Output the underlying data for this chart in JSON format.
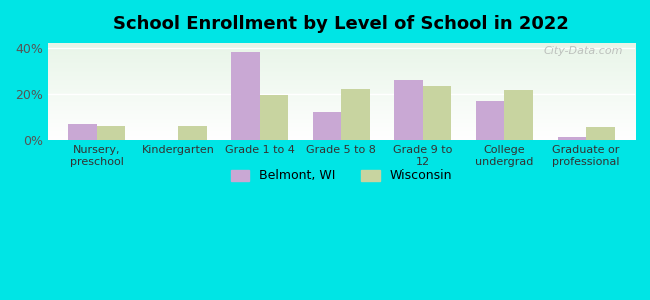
{
  "title": "School Enrollment by Level of School in 2022",
  "categories": [
    "Nursery,\npreschool",
    "Kindergarten",
    "Grade 1 to 4",
    "Grade 5 to 8",
    "Grade 9 to\n12",
    "College\nundergrad",
    "Graduate or\nprofessional"
  ],
  "belmont": [
    7.0,
    0.0,
    38.0,
    12.0,
    26.0,
    17.0,
    1.5
  ],
  "wisconsin": [
    6.0,
    6.0,
    19.5,
    22.0,
    23.5,
    21.5,
    5.5
  ],
  "belmont_color": "#c9a8d4",
  "wisconsin_color": "#c8d4a0",
  "background_color": "#00e5e5",
  "plot_bg_gradient_top": "#e8f5e8",
  "plot_bg_gradient_bottom": "#ffffff",
  "ylabel_ticks": [
    "0%",
    "20%",
    "40%"
  ],
  "yticks": [
    0,
    20,
    40
  ],
  "ylim": [
    0,
    42
  ],
  "legend_label1": "Belmont, WI",
  "legend_label2": "Wisconsin",
  "watermark": "City-Data.com",
  "bar_width": 0.35
}
